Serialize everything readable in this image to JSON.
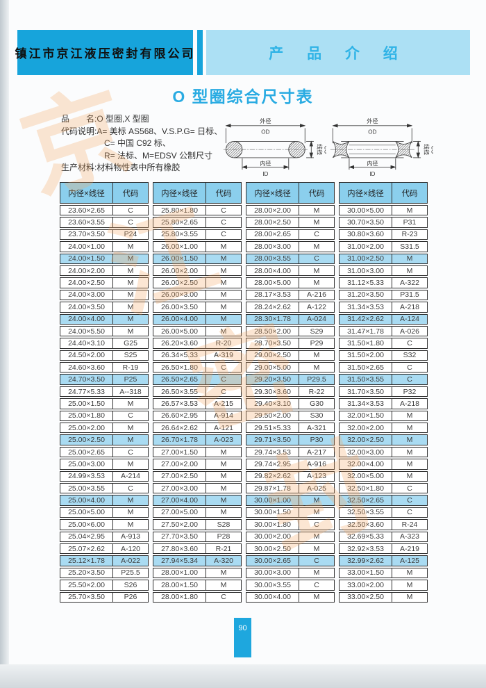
{
  "header": {
    "company": "镇江市京江液压密封有限公司",
    "section": "产 品 介 绍"
  },
  "title": "O 型圈综合尺寸表",
  "info": {
    "lines": [
      "品　　名:O 型圈,X 型圈",
      "代码说明:A= 美标 AS568、V.S.P.G= 日标、",
      "C= 中国 C92 标、",
      "R= 法标、M=EDSV 公制尺寸",
      "生产材料:材料物性表中所有橡胶"
    ]
  },
  "diagram": {
    "outer": "外径",
    "outer_code": "OD",
    "inner": "内径",
    "inner_code": "ID",
    "wire": "线径",
    "wire_code": "CS"
  },
  "watermark": [
    "京",
    "江",
    "密",
    "封"
  ],
  "page_number": "90",
  "colors": {
    "banner_dark": "#17a4db",
    "banner_light": "#ace0f4",
    "title_accent": "#29abe2",
    "table_header_bg": "#8bcfed",
    "row_highlight_bg": "#a9dbf2",
    "watermark": "#f5a963",
    "page_number_bg": "#1ea7de"
  },
  "table": {
    "col_size": "内径×线径",
    "col_code": "代码",
    "groups": [
      [
        [
          "23.60×2.65",
          "C"
        ],
        [
          "23.60×3.55",
          "C"
        ],
        [
          "23.70×3.50",
          "P24"
        ],
        [
          "24.00×1.00",
          "M"
        ],
        [
          "24.00×1.50",
          "M"
        ],
        [
          "24.00×2.00",
          "M"
        ],
        [
          "24.00×2.50",
          "M"
        ],
        [
          "24.00×3.00",
          "M"
        ],
        [
          "24.00×3.50",
          "M"
        ],
        [
          "24.00×4.00",
          "M"
        ],
        [
          "24.00×5.50",
          "M"
        ],
        [
          "24.40×3.10",
          "G25"
        ],
        [
          "24.50×2.00",
          "S25"
        ],
        [
          "24.60×3.60",
          "R-19"
        ],
        [
          "24.70×3.50",
          "P25"
        ],
        [
          "24.77×5.33",
          "A--318"
        ],
        [
          "25.00×1.50",
          "M"
        ],
        [
          "25.00×1.80",
          "C"
        ],
        [
          "25.00×2.00",
          "M"
        ],
        [
          "25.00×2.50",
          "M"
        ],
        [
          "25.00×2.65",
          "C"
        ],
        [
          "25.00×3.00",
          "M"
        ],
        [
          "24.99×3.53",
          "A-214"
        ],
        [
          "25.00×3.55",
          "C"
        ],
        [
          "25.00×4.00",
          "M"
        ],
        [
          "25.00×5.00",
          "M"
        ],
        [
          "25.00×6.00",
          "M"
        ],
        [
          "25.04×2.95",
          "A-913"
        ],
        [
          "25.07×2.62",
          "A-120"
        ],
        [
          "25.12×1.78",
          "A-022"
        ],
        [
          "25.20×3.50",
          "P25.5"
        ],
        [
          "25.50×2.00",
          "S26"
        ],
        [
          "25.70×3.50",
          "P26"
        ]
      ],
      [
        [
          "25.80×1.80",
          "C"
        ],
        [
          "25.80×2.65",
          "C"
        ],
        [
          "25.80×3.55",
          "C"
        ],
        [
          "26.00×1.00",
          "M"
        ],
        [
          "26.00×1.50",
          "M"
        ],
        [
          "26.00×2.00",
          "M"
        ],
        [
          "26.00×2.50",
          "M"
        ],
        [
          "26.00×3.00",
          "M"
        ],
        [
          "26.00×3.50",
          "M"
        ],
        [
          "26.00×4.00",
          "M"
        ],
        [
          "26.00×5.00",
          "M"
        ],
        [
          "26.20×3.60",
          "R-20"
        ],
        [
          "26.34×5.33",
          "A-319"
        ],
        [
          "26.50×1.80",
          "C"
        ],
        [
          "26.50×2.65",
          "C"
        ],
        [
          "26.50×3.55",
          "C"
        ],
        [
          "26.57×3.53",
          "A-215"
        ],
        [
          "26.60×2.95",
          "A-914"
        ],
        [
          "26.64×2.62",
          "A-121"
        ],
        [
          "26.70×1.78",
          "A-023"
        ],
        [
          "27.00×1.50",
          "M"
        ],
        [
          "27.00×2.00",
          "M"
        ],
        [
          "27.00×2.50",
          "M"
        ],
        [
          "27.00×3.00",
          "M"
        ],
        [
          "27.00×4.00",
          "M"
        ],
        [
          "27.00×5.00",
          "M"
        ],
        [
          "27.50×2.00",
          "S28"
        ],
        [
          "27.70×3.50",
          "P28"
        ],
        [
          "27.80×3.60",
          "R-21"
        ],
        [
          "27.94×5.34",
          "A-320"
        ],
        [
          "28.00×1.00",
          "M"
        ],
        [
          "28.00×1.50",
          "M"
        ],
        [
          "28.00×1.80",
          "C"
        ]
      ],
      [
        [
          "28.00×2.00",
          "M"
        ],
        [
          "28.00×2.50",
          "M"
        ],
        [
          "28.00×2.65",
          "C"
        ],
        [
          "28.00×3.00",
          "M"
        ],
        [
          "28.00×3.55",
          "C"
        ],
        [
          "28.00×4.00",
          "M"
        ],
        [
          "28.00×5.00",
          "M"
        ],
        [
          "28.17×3.53",
          "A-216"
        ],
        [
          "28.24×2.62",
          "A-122"
        ],
        [
          "28.30×1.78",
          "A-024"
        ],
        [
          "28.50×2.00",
          "S29"
        ],
        [
          "28.70×3.50",
          "P29"
        ],
        [
          "29.00×2.50",
          "M"
        ],
        [
          "29.00×5.00",
          "M"
        ],
        [
          "29.20×3.50",
          "P29.5"
        ],
        [
          "29.30×3.60",
          "R-22"
        ],
        [
          "29.40×3.10",
          "G30"
        ],
        [
          "29.50×2.00",
          "S30"
        ],
        [
          "29.51×5.33",
          "A-321"
        ],
        [
          "29.71×3.50",
          "P30"
        ],
        [
          "29.74×3.53",
          "A-217"
        ],
        [
          "29.74×2.95",
          "A-916"
        ],
        [
          "29.82×2.62",
          "A-123"
        ],
        [
          "29.87×1.78",
          "A-025"
        ],
        [
          "30.00×1.00",
          "M"
        ],
        [
          "30.00×1.50",
          "M"
        ],
        [
          "30.00×1.80",
          "C"
        ],
        [
          "30.00×2.00",
          "M"
        ],
        [
          "30.00×2.50",
          "M"
        ],
        [
          "30.00×2.65",
          "C"
        ],
        [
          "30.00×3.00",
          "M"
        ],
        [
          "30.00×3.55",
          "C"
        ],
        [
          "30.00×4.00",
          "M"
        ]
      ],
      [
        [
          "30.00×5.00",
          "M"
        ],
        [
          "30.70×3.50",
          "P31"
        ],
        [
          "30.80×3.60",
          "R-23"
        ],
        [
          "31.00×2.00",
          "S31.5"
        ],
        [
          "31.00×2.50",
          "M"
        ],
        [
          "31.00×3.00",
          "M"
        ],
        [
          "31.12×5.33",
          "A-322"
        ],
        [
          "31.20×3.50",
          "P31.5"
        ],
        [
          "31.34×3.53",
          "A-218"
        ],
        [
          "31.42×2.62",
          "A-124"
        ],
        [
          "31.47×1.78",
          "A-026"
        ],
        [
          "31.50×1.80",
          "C"
        ],
        [
          "31.50×2.00",
          "S32"
        ],
        [
          "31.50×2.65",
          "C"
        ],
        [
          "31.50×3.55",
          "C"
        ],
        [
          "31.70×3.50",
          "P32"
        ],
        [
          "31.34×3.53",
          "A-218"
        ],
        [
          "32.00×1.50",
          "M"
        ],
        [
          "32.00×2.00",
          "M"
        ],
        [
          "32.00×2.50",
          "M"
        ],
        [
          "32.00×3.00",
          "M"
        ],
        [
          "32.00×4.00",
          "M"
        ],
        [
          "32.00×5.00",
          "M"
        ],
        [
          "32.50×1.80",
          "C"
        ],
        [
          "32.50×2.65",
          "C"
        ],
        [
          "32.50×3.55",
          "C"
        ],
        [
          "32.50×3.60",
          "R-24"
        ],
        [
          "32.69×5.33",
          "A-323"
        ],
        [
          "32.92×3.53",
          "A-219"
        ],
        [
          "32.99×2.62",
          "A-125"
        ],
        [
          "33.00×1.50",
          "M"
        ],
        [
          "33.00×2.00",
          "M"
        ],
        [
          "33.00×2.50",
          "M"
        ]
      ]
    ]
  }
}
